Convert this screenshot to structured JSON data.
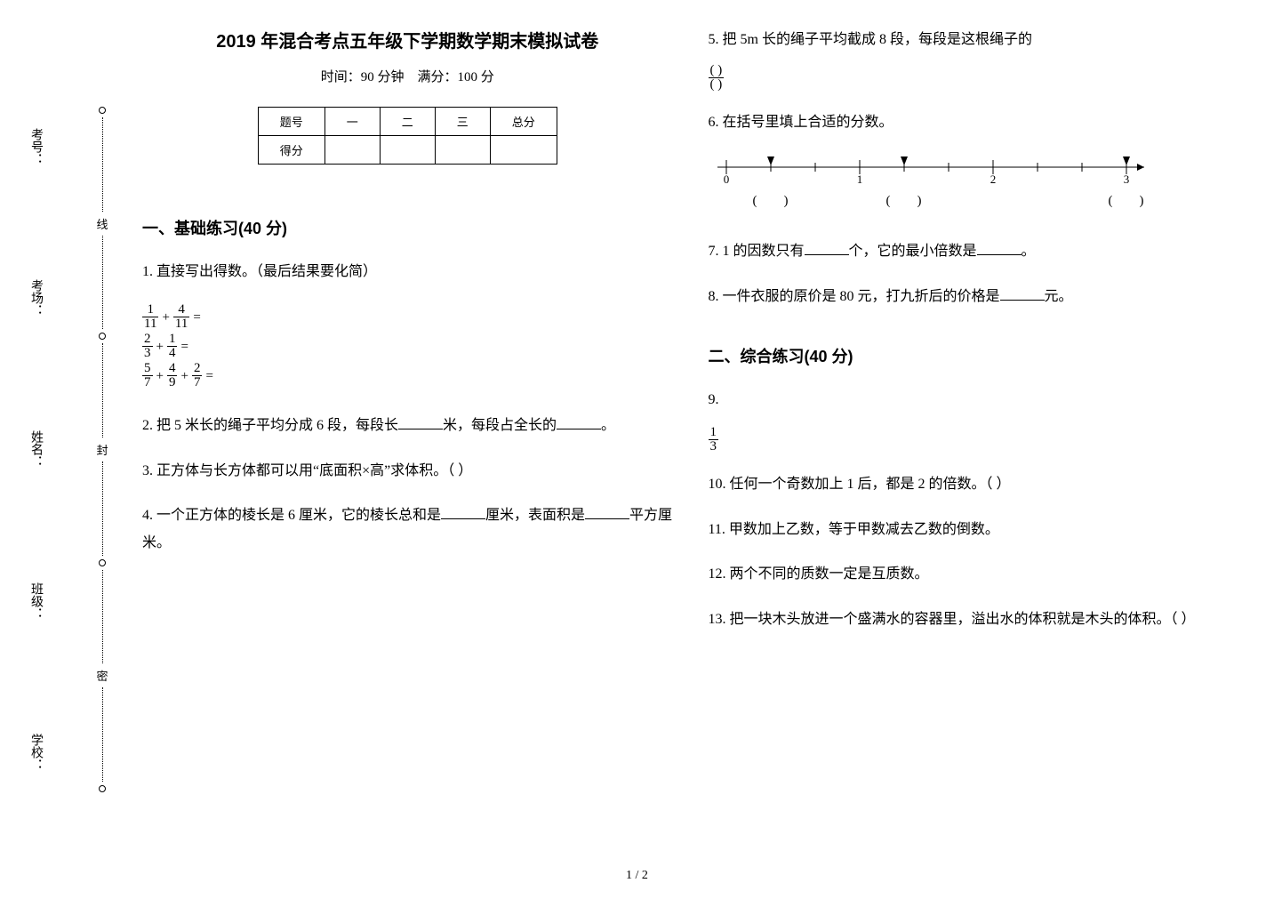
{
  "colors": {
    "text": "#000000",
    "background": "#ffffff",
    "border": "#000000"
  },
  "binding": {
    "labels": [
      "考号：",
      "考场：",
      "姓名：",
      "班级：",
      "学校："
    ],
    "markers": [
      "线",
      "封",
      "密"
    ]
  },
  "header": {
    "title": "2019 年混合考点五年级下学期数学期末模拟试卷",
    "time_label": "时间：90 分钟",
    "full_label": "满分：100 分"
  },
  "score_table": {
    "row1": [
      "题号",
      "一",
      "二",
      "三",
      "总分"
    ],
    "row2_label": "得分"
  },
  "sections": {
    "s1": "一、基础练习(40 分)",
    "s2": "二、综合练习(40 分)"
  },
  "q1": {
    "text": "1. 直接写出得数。（最后结果要化简）",
    "lines": [
      {
        "a_num": "1",
        "a_den": "11",
        "op": "+",
        "b_num": "4",
        "b_den": "11",
        "tail": "="
      },
      {
        "a_num": "2",
        "a_den": "3",
        "op": "+",
        "b_num": "1",
        "b_den": "4",
        "tail": "="
      },
      {
        "a_num": "5",
        "a_den": "7",
        "op": "+",
        "b_num": "4",
        "b_den": "9",
        "op2": "+",
        "c_num": "2",
        "c_den": "7",
        "tail": "="
      }
    ]
  },
  "q2": {
    "pre": "2. 把 5 米长的绳子平均分成 6 段，每段长",
    "mid": "米，每段占全长的",
    "post": "。"
  },
  "q3": {
    "text": "3. 正方体与长方体都可以用“底面积×高”求体积。（     ）"
  },
  "q4": {
    "pre": "4. 一个正方体的棱长是 6 厘米，它的棱长总和是",
    "mid": "厘米，表面积是",
    "post": "平方厘米。"
  },
  "q5": {
    "text": "5. 把 5m 长的绳子平均截成 8 段，每段是这根绳子的",
    "frac_num": "( )",
    "frac_den": "( )"
  },
  "q6": {
    "text": "6. 在括号里填上合适的分数。",
    "ticks": [
      "0",
      "1",
      "2",
      "3"
    ],
    "arrows": [
      1,
      4,
      9
    ],
    "paren_positions": [
      1,
      4,
      9
    ]
  },
  "q7": {
    "pre": "7. 1 的因数只有",
    "mid": "个，它的最小倍数是",
    "post": "。"
  },
  "q8": {
    "pre": "8. 一件衣服的原价是 80 元，打九折后的价格是",
    "post": "元。"
  },
  "q9": {
    "label": "9.",
    "frac_num": "1",
    "frac_den": "3"
  },
  "q10": {
    "text": "10. 任何一个奇数加上 1 后，都是 2 的倍数。（      ）"
  },
  "q11": {
    "text": "11. 甲数加上乙数，等于甲数减去乙数的倒数。"
  },
  "q12": {
    "text": "12. 两个不同的质数一定是互质数。"
  },
  "q13": {
    "text": "13. 把一块木头放进一个盛满水的容器里，溢出水的体积就是木头的体积。（        ）"
  },
  "page_num": "1 / 2"
}
